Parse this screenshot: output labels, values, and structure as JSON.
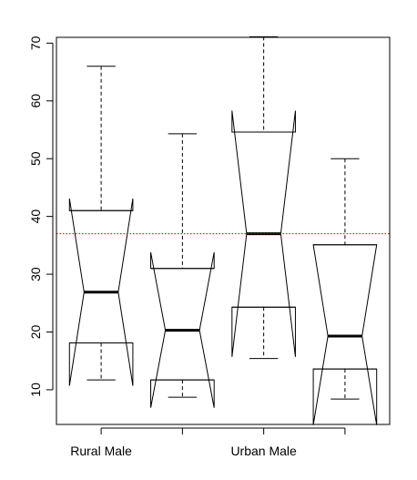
{
  "chart_data": {
    "type": "boxplot",
    "notched": true,
    "title": "",
    "xlabel": "",
    "ylabel": "",
    "ylim": [
      4,
      71
    ],
    "yticks": [
      10,
      20,
      30,
      40,
      50,
      60,
      70
    ],
    "categories": [
      "Rural Male",
      "",
      "Urban Male",
      ""
    ],
    "boxes": [
      {
        "whisker_low": 11.7,
        "q1": 18.1,
        "median": 26.9,
        "q3": 41.0,
        "whisker_high": 66.0,
        "notch_low": 10.7,
        "notch_high": 43.1
      },
      {
        "whisker_low": 8.7,
        "q1": 11.7,
        "median": 20.3,
        "q3": 31.0,
        "whisker_high": 54.3,
        "notch_low": 6.9,
        "notch_high": 33.8
      },
      {
        "whisker_low": 15.4,
        "q1": 24.3,
        "median": 37.0,
        "q3": 54.6,
        "whisker_high": 71.1,
        "notch_low": 15.7,
        "notch_high": 58.3
      },
      {
        "whisker_low": 8.4,
        "q1": 13.6,
        "median": 19.3,
        "q3": 35.1,
        "whisker_high": 50.0,
        "notch_low": 3.9,
        "notch_high": 35.1
      }
    ],
    "reference_line": {
      "y": 37.0,
      "style": "dotted",
      "color": "#cc0000"
    },
    "colors": {
      "box": "#000000",
      "reference": "#cc0000"
    }
  }
}
